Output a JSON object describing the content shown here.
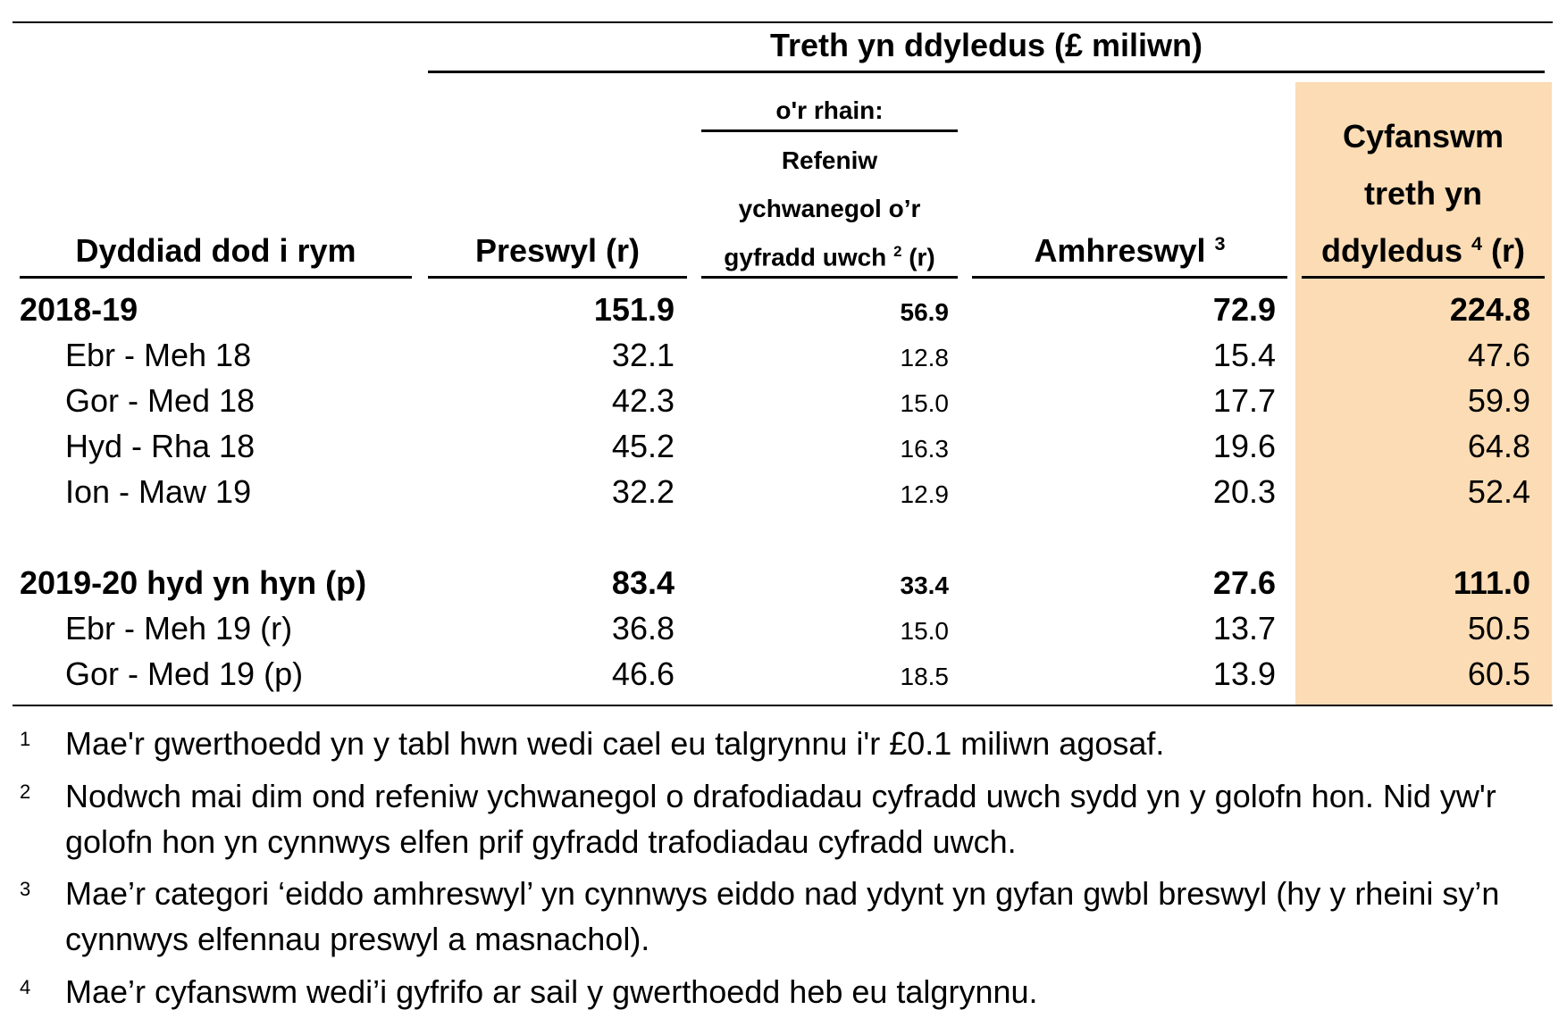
{
  "header": {
    "group_title": "Treth yn ddyledus (£ miliwn)",
    "date_col": "Dyddiad dod i rym",
    "residential": "Preswyl (r)",
    "of_which": "o'r rhain:",
    "higher_rate_1": "Refeniw",
    "higher_rate_2": "ychwanegol o’r",
    "higher_rate_3": "gyfradd uwch",
    "higher_rate_sup": "2",
    "higher_rate_suffix": "(r)",
    "nonres": "Amhreswyl",
    "nonres_sup": "3",
    "total_1": "Cyfanswm",
    "total_2": "treth yn",
    "total_3": "ddyledus",
    "total_sup": "4",
    "total_suffix": "(r)"
  },
  "highlight_color": "#fcdcb4",
  "rows": [
    {
      "label": "2018-19",
      "res": "151.9",
      "higher": "56.9",
      "nonres": "72.9",
      "total": "224.8",
      "bold": true
    },
    {
      "label": "Ebr - Meh 18",
      "res": "32.1",
      "higher": "12.8",
      "nonres": "15.4",
      "total": "47.6"
    },
    {
      "label": "Gor - Med 18",
      "res": "42.3",
      "higher": "15.0",
      "nonres": "17.7",
      "total": "59.9"
    },
    {
      "label": "Hyd - Rha 18",
      "res": "45.2",
      "higher": "16.3",
      "nonres": "19.6",
      "total": "64.8"
    },
    {
      "label": "Ion - Maw 19",
      "res": "32.2",
      "higher": "12.9",
      "nonres": "20.3",
      "total": "52.4"
    },
    {
      "label": "2019-20 hyd yn hyn (p)",
      "res": "83.4",
      "higher": "33.4",
      "nonres": "27.6",
      "total": "111.0",
      "bold": true
    },
    {
      "label": "Ebr - Meh 19 (r)",
      "res": "36.8",
      "higher": "15.0",
      "nonres": "13.7",
      "total": "50.5"
    },
    {
      "label": "Gor - Med 19 (p)",
      "res": "46.6",
      "higher": "18.5",
      "nonres": "13.9",
      "total": "60.5"
    }
  ],
  "footnotes": [
    {
      "num": "1",
      "text": "Mae'r gwerthoedd yn y tabl hwn wedi cael eu talgrynnu i'r £0.1 miliwn agosaf."
    },
    {
      "num": "2",
      "text": "Nodwch mai dim ond refeniw ychwanegol o drafodiadau cyfradd uwch sydd yn y golofn hon. Nid yw'r golofn hon yn cynnwys elfen prif gyfradd trafodiadau cyfradd uwch."
    },
    {
      "num": "3",
      "text": "Mae’r categori ‘eiddo amhreswyl’ yn cynnwys eiddo nad ydynt yn gyfan gwbl breswyl (hy y rheini sy’n cynnwys elfennau preswyl a masnachol)."
    },
    {
      "num": "4",
      "text": "Mae’r cyfanswm wedi’i gyfrifo ar sail y gwerthoedd heb eu talgrynnu."
    }
  ]
}
